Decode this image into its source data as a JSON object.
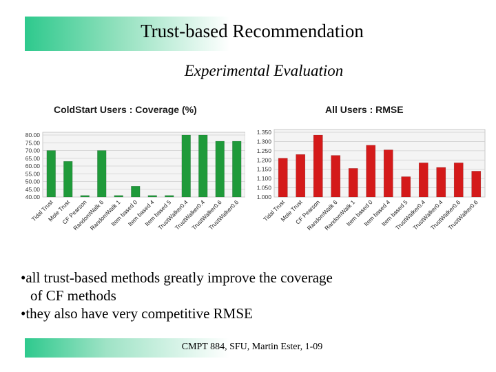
{
  "slide": {
    "title": "Trust-based Recommendation",
    "subtitle": "Experimental Evaluation",
    "bullets": [
      "•all trust-based methods greatly improve the coverage",
      "of CF methods",
      "•they also have very competitive RMSE"
    ],
    "footer": "CMPT 884, SFU, Martin Ester, 1-09",
    "accent_color": "#2ec98d"
  },
  "chart_data": [
    {
      "type": "bar",
      "title": "ColdStart Users : Coverage (%)",
      "categories": [
        "Tidal Trust",
        "Mole Trust",
        "CF Pearson",
        "RandomWalk 6",
        "RandomWalk 1",
        "Item based 0",
        "Item based 4",
        "Item based 5",
        "TrustWalker0.4",
        "TrustWalker0.4",
        "TrustWalker0.6",
        "TrustWalker0.6"
      ],
      "values": [
        70,
        63,
        41,
        70,
        41,
        47,
        41,
        41,
        80,
        80,
        76,
        76
      ],
      "ylim": [
        40,
        80
      ],
      "yticks": [
        "40.00",
        "45.00",
        "50.00",
        "55.00",
        "60.00",
        "65.00",
        "70.00",
        "75.00",
        "80.00"
      ],
      "color": "#1f9a3a",
      "grid": true
    },
    {
      "type": "bar",
      "title": "All Users : RMSE",
      "categories": [
        "Tidal Trust",
        "Mole Trust",
        "CF Pearson",
        "RandomWalk 6",
        "RandomWalk 1",
        "Item based 0",
        "Item based 4",
        "Item based 5",
        "TrustWalker0.4",
        "TrustWalker0.4",
        "TrustWalker0.6",
        "TrustWalker0.6"
      ],
      "values": [
        1.21,
        1.23,
        1.335,
        1.225,
        1.155,
        1.28,
        1.255,
        1.11,
        1.185,
        1.16,
        1.185,
        1.14
      ],
      "ylim": [
        1.0,
        1.35
      ],
      "yticks": [
        "1.000",
        "1.050",
        "1.100",
        "1.150",
        "1.200",
        "1.250",
        "1.300",
        "1.350"
      ],
      "color": "#d41a1a",
      "grid": true
    }
  ]
}
